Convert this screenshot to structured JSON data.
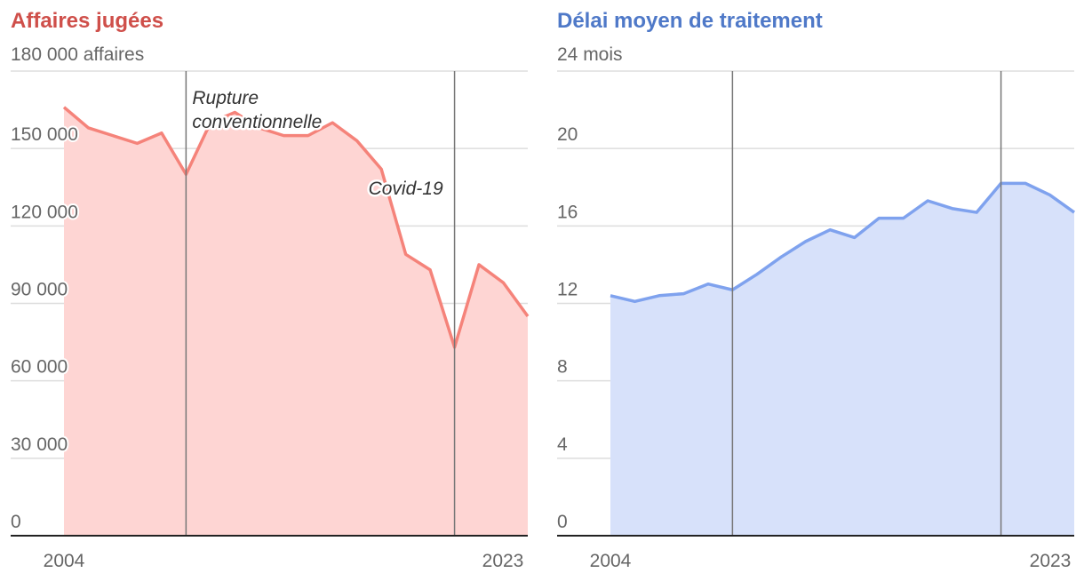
{
  "chart_data": [
    {
      "type": "area",
      "title": "Affaires jugées",
      "unit_label": "180 000 affaires",
      "color": "#f5837a",
      "fill": "#fed5d3",
      "title_color": "#cf4f4a",
      "y_ticks": [
        "0",
        "30 000",
        "60 000",
        "90 000",
        "120 000",
        "150 000"
      ],
      "ylim": [
        0,
        180000
      ],
      "xlim": [
        2004,
        2023
      ],
      "x_labels": [
        "2004",
        "2023"
      ],
      "x": [
        2004,
        2005,
        2006,
        2007,
        2008,
        2009,
        2010,
        2011,
        2012,
        2013,
        2014,
        2015,
        2016,
        2017,
        2018,
        2019,
        2020,
        2021,
        2022,
        2023
      ],
      "values": [
        166000,
        158000,
        155000,
        152000,
        156000,
        140000,
        160000,
        164000,
        158000,
        155000,
        155000,
        160000,
        153000,
        142000,
        109000,
        103000,
        73000,
        105000,
        98000,
        85000
      ],
      "annotations": [
        {
          "x": 2009,
          "label_lines": [
            "Rupture",
            "conventionnelle"
          ]
        },
        {
          "x": 2020,
          "label_lines": [
            "Covid-19"
          ]
        }
      ]
    },
    {
      "type": "area",
      "title": "Délai moyen de traitement",
      "unit_label": "24 mois",
      "color": "#7fa2ee",
      "fill": "#d7e1fa",
      "title_color": "#4f79c8",
      "y_ticks": [
        "0",
        "4",
        "8",
        "12",
        "16",
        "20"
      ],
      "ylim": [
        0,
        24
      ],
      "xlim": [
        2004,
        2023
      ],
      "x_labels": [
        "2004",
        "2023"
      ],
      "x": [
        2004,
        2005,
        2006,
        2007,
        2008,
        2009,
        2010,
        2011,
        2012,
        2013,
        2014,
        2015,
        2016,
        2017,
        2018,
        2019,
        2020,
        2021,
        2022,
        2023
      ],
      "values": [
        12.4,
        12.1,
        12.4,
        12.5,
        13.0,
        12.7,
        13.5,
        14.4,
        15.2,
        15.8,
        15.4,
        16.4,
        16.4,
        17.3,
        16.9,
        16.7,
        18.2,
        18.2,
        17.6,
        16.7
      ],
      "annotations": [
        {
          "x": 2009,
          "label_lines": []
        },
        {
          "x": 2020,
          "label_lines": []
        }
      ]
    }
  ]
}
